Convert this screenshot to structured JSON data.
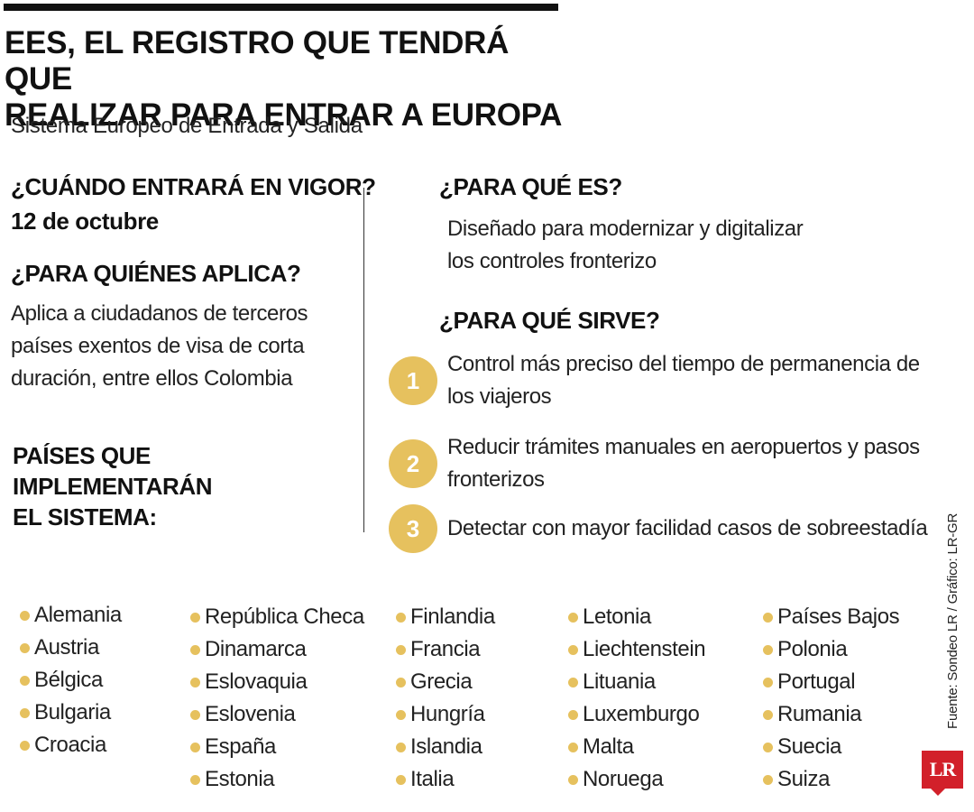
{
  "title": {
    "line1": "EES, EL REGISTRO QUE TENDRÁ QUE",
    "line2": "REALIZAR PARA ENTRAR A EUROPA"
  },
  "subtitle": "Sistema Europeo de Entrada y Salida",
  "when": {
    "heading": "¿CUÁNDO ENTRARÁ EN VIGOR?",
    "date": "12 de octubre"
  },
  "who": {
    "heading": "¿PARA QUIÉNES APLICA?",
    "lines": [
      "Aplica a ciudadanos de terceros",
      "países exentos de visa de corta",
      "duración, entre ellos Colombia"
    ]
  },
  "what_for": {
    "heading": "¿PARA QUÉ ES?",
    "lines": [
      "Diseñado para modernizar y digitalizar",
      "los controles fronterizo"
    ]
  },
  "uses": {
    "heading": "¿PARA QUÉ SIRVE?",
    "items": [
      {
        "num": "1",
        "lines": [
          "Control más preciso del tiempo de permanencia de",
          "los viajeros"
        ]
      },
      {
        "num": "2",
        "lines": [
          "Reducir trámites manuales en aeropuertos y pasos",
          "fronterizos"
        ]
      },
      {
        "num": "3",
        "lines": [
          "Detectar con mayor facilidad casos de sobreestadía"
        ]
      }
    ]
  },
  "countries": {
    "heading_lines": [
      "PAÍSES QUE",
      "IMPLEMENTARÁN",
      "EL SISTEMA:"
    ],
    "columns": [
      [
        "Alemania",
        "Austria",
        "Bélgica",
        "Bulgaria",
        "Croacia"
      ],
      [
        "República Checa",
        "Dinamarca",
        "Eslovaquia",
        "Eslovenia",
        "España",
        "Estonia"
      ],
      [
        "Finlandia",
        "Francia",
        "Grecia",
        "Hungría",
        "Islandia",
        "Italia"
      ],
      [
        "Letonia",
        "Liechtenstein",
        "Lituania",
        "Luxemburgo",
        "Malta",
        "Noruega"
      ],
      [
        "Países Bajos",
        "Polonia",
        "Portugal",
        "Rumania",
        "Suecia",
        "Suiza"
      ]
    ]
  },
  "source": "Fuente: Sondeo LR / Gráfico: LR-GR",
  "logo": "LR",
  "colors": {
    "accent": "#e6c15e",
    "brand": "#d2202a",
    "text": "#222222"
  }
}
